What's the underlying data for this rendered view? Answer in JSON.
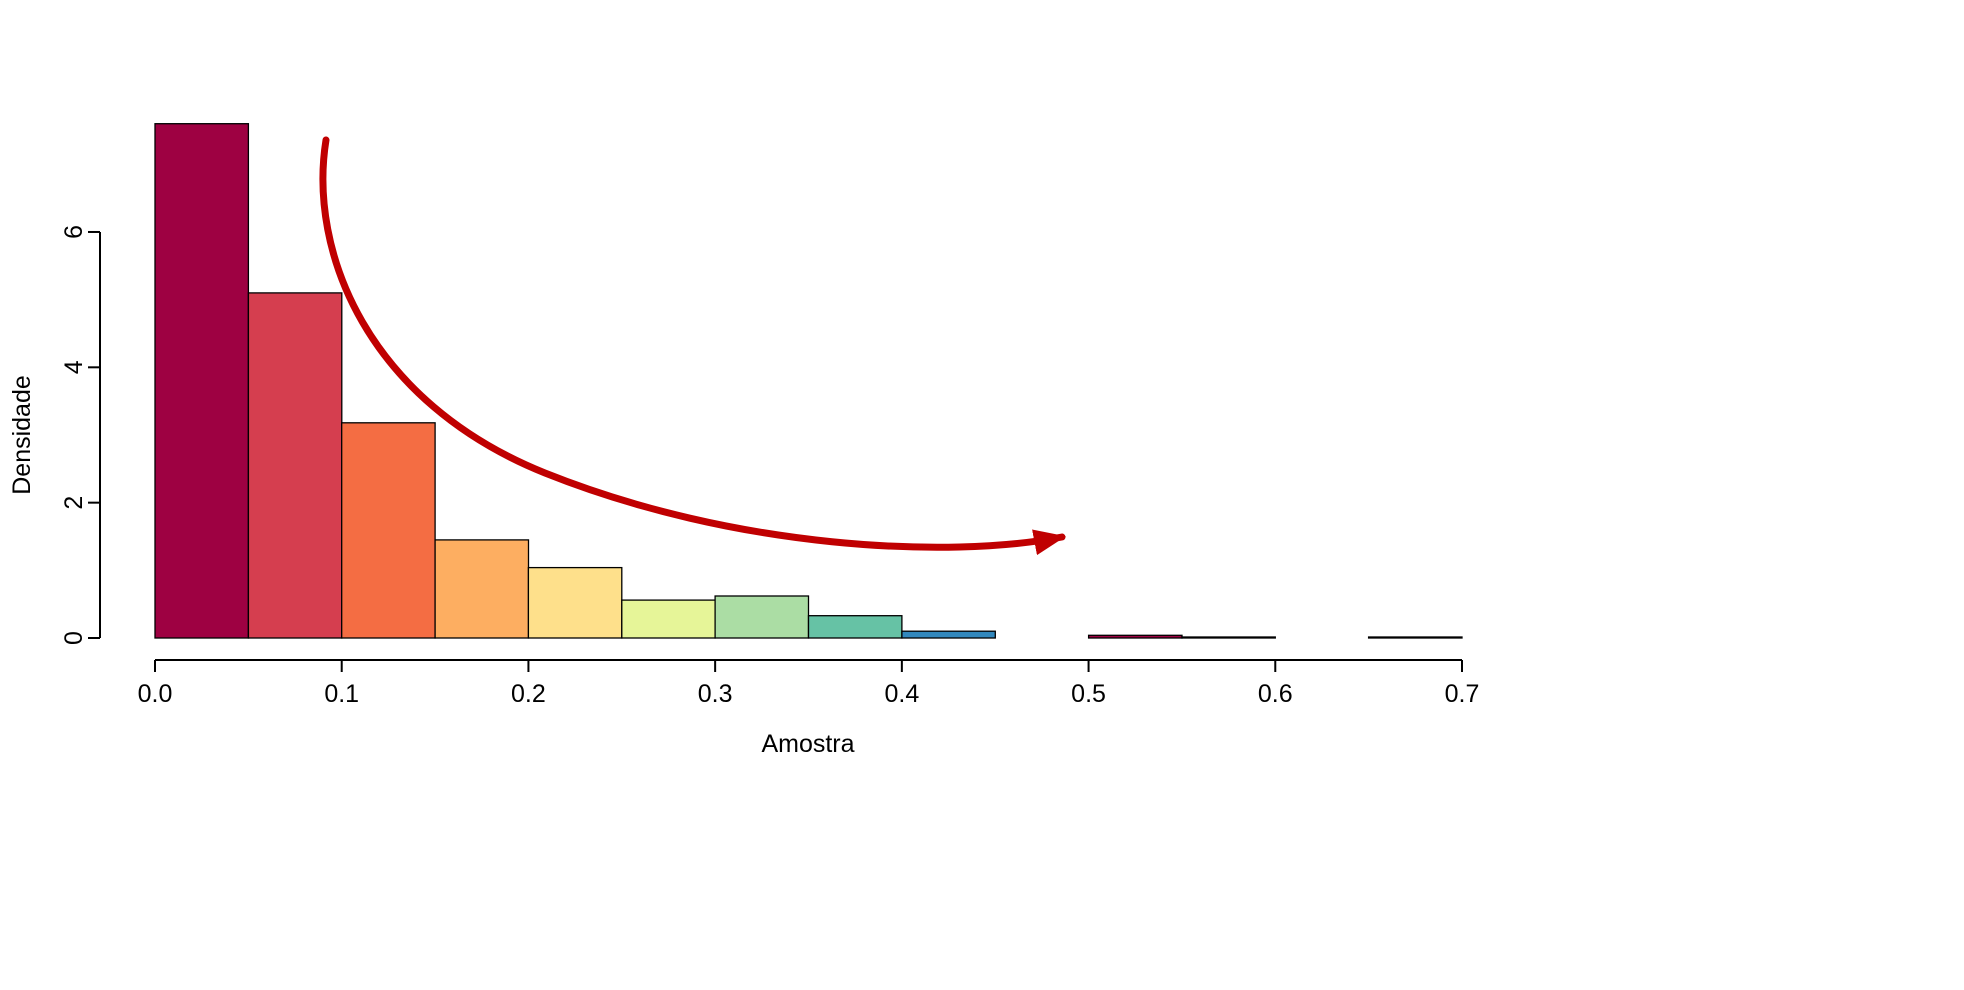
{
  "figure": {
    "background": "#ffffff"
  },
  "chart_data": {
    "type": "bar",
    "subtype": "histogram",
    "title": "",
    "xlabel": "Amostra",
    "ylabel": "Densidade",
    "xlim": [
      0.0,
      0.7
    ],
    "ylim": [
      0,
      7.63
    ],
    "grid": false,
    "legend": "none",
    "bin_width": 0.05,
    "bar_border_color": "#000000",
    "axis_color": "#000000",
    "bins": [
      {
        "x0": 0.0,
        "x1": 0.05,
        "density": 7.6,
        "color": "#9E0142"
      },
      {
        "x0": 0.05,
        "x1": 0.1,
        "density": 5.1,
        "color": "#D53E4F"
      },
      {
        "x0": 0.1,
        "x1": 0.15,
        "density": 3.18,
        "color": "#F46D43"
      },
      {
        "x0": 0.15,
        "x1": 0.2,
        "density": 1.45,
        "color": "#FDAE61"
      },
      {
        "x0": 0.2,
        "x1": 0.25,
        "density": 1.04,
        "color": "#FEE08B"
      },
      {
        "x0": 0.25,
        "x1": 0.3,
        "density": 0.56,
        "color": "#E6F598"
      },
      {
        "x0": 0.3,
        "x1": 0.35,
        "density": 0.62,
        "color": "#ABDDA4"
      },
      {
        "x0": 0.35,
        "x1": 0.4,
        "density": 0.33,
        "color": "#66C2A5"
      },
      {
        "x0": 0.4,
        "x1": 0.45,
        "density": 0.1,
        "color": "#3288BD"
      },
      {
        "x0": 0.45,
        "x1": 0.5,
        "density": 0.0,
        "color": "#5E4FA2"
      },
      {
        "x0": 0.5,
        "x1": 0.55,
        "density": 0.04,
        "color": "#9E0142"
      },
      {
        "x0": 0.55,
        "x1": 0.6,
        "density": 0.015,
        "color": "#D53E4F"
      },
      {
        "x0": 0.6,
        "x1": 0.65,
        "density": 0.0,
        "color": "#F46D43"
      },
      {
        "x0": 0.65,
        "x1": 0.7,
        "density": 0.015,
        "color": "#5E4FA2"
      }
    ],
    "x_ticks": [
      0.0,
      0.1,
      0.2,
      0.3,
      0.4,
      0.5,
      0.6,
      0.7
    ],
    "x_tick_labels": [
      "0.0",
      "0.1",
      "0.2",
      "0.3",
      "0.4",
      "0.5",
      "0.6",
      "0.7"
    ],
    "y_ticks": [
      0,
      2,
      4,
      6
    ],
    "y_tick_labels": [
      "0",
      "2",
      "4",
      "6"
    ],
    "annotation": {
      "type": "curved-arrow",
      "color": "#C00001",
      "description": "thick red exponential-decay curve with arrowhead sweeping from upper left down to middle right"
    }
  }
}
